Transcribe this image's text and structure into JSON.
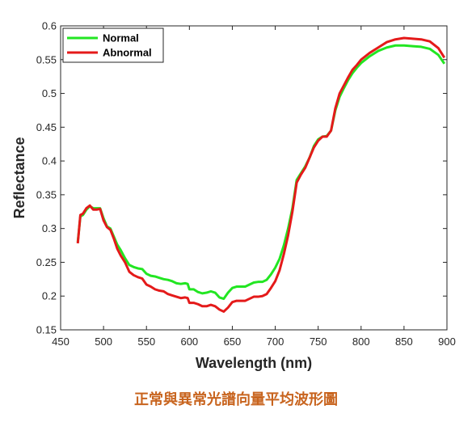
{
  "caption": "正常與異常光譜向量平均波形圖",
  "colors": {
    "caption": "#c8641e",
    "axis": "#262626"
  },
  "chart_data": {
    "type": "line",
    "title": "",
    "xlabel": "Wavelength (nm)",
    "ylabel": "Reflectance",
    "xlim": [
      450,
      900
    ],
    "ylim": [
      0.15,
      0.6
    ],
    "xticks": [
      450,
      500,
      550,
      600,
      650,
      700,
      750,
      800,
      850,
      900
    ],
    "yticks": [
      0.15,
      0.2,
      0.25,
      0.3,
      0.35,
      0.4,
      0.45,
      0.5,
      0.55,
      0.6
    ],
    "xtick_labels": [
      "450",
      "500",
      "550",
      "600",
      "650",
      "700",
      "750",
      "800",
      "850",
      "900"
    ],
    "ytick_labels": [
      "0.15",
      "0.2",
      "0.25",
      "0.3",
      "0.35",
      "0.4",
      "0.45",
      "0.5",
      "0.55",
      "0.6"
    ],
    "grid": false,
    "legend": "top-left",
    "series": [
      {
        "name": "Normal",
        "color": "#22e622",
        "x": [
          470,
          473,
          476,
          480,
          484,
          488,
          492,
          496,
          500,
          504,
          508,
          512,
          516,
          520,
          525,
          530,
          535,
          540,
          545,
          550,
          555,
          560,
          565,
          570,
          575,
          580,
          585,
          590,
          595,
          598,
          600,
          605,
          610,
          615,
          620,
          625,
          630,
          635,
          640,
          645,
          650,
          655,
          660,
          665,
          670,
          675,
          680,
          685,
          690,
          695,
          700,
          705,
          710,
          715,
          720,
          725,
          730,
          735,
          740,
          745,
          750,
          755,
          760,
          765,
          770,
          775,
          780,
          785,
          790,
          795,
          800,
          810,
          820,
          830,
          840,
          850,
          860,
          870,
          880,
          890,
          897
        ],
        "y": [
          0.28,
          0.318,
          0.32,
          0.328,
          0.333,
          0.33,
          0.33,
          0.33,
          0.315,
          0.303,
          0.3,
          0.288,
          0.276,
          0.268,
          0.256,
          0.246,
          0.243,
          0.241,
          0.24,
          0.233,
          0.23,
          0.229,
          0.227,
          0.225,
          0.224,
          0.222,
          0.219,
          0.218,
          0.219,
          0.218,
          0.21,
          0.21,
          0.206,
          0.204,
          0.205,
          0.207,
          0.205,
          0.198,
          0.196,
          0.205,
          0.212,
          0.214,
          0.214,
          0.214,
          0.217,
          0.22,
          0.221,
          0.221,
          0.224,
          0.232,
          0.242,
          0.255,
          0.275,
          0.3,
          0.33,
          0.372,
          0.382,
          0.392,
          0.405,
          0.422,
          0.432,
          0.436,
          0.437,
          0.445,
          0.475,
          0.495,
          0.508,
          0.52,
          0.53,
          0.538,
          0.545,
          0.555,
          0.563,
          0.568,
          0.571,
          0.571,
          0.57,
          0.569,
          0.566,
          0.557,
          0.544
        ]
      },
      {
        "name": "Abnormal",
        "color": "#e41a1a",
        "x": [
          470,
          473,
          476,
          480,
          484,
          488,
          492,
          496,
          500,
          504,
          508,
          512,
          516,
          520,
          525,
          530,
          535,
          540,
          545,
          550,
          555,
          560,
          565,
          570,
          575,
          580,
          585,
          590,
          595,
          598,
          600,
          605,
          610,
          615,
          620,
          625,
          630,
          635,
          640,
          645,
          650,
          655,
          660,
          665,
          670,
          675,
          680,
          685,
          690,
          695,
          700,
          705,
          710,
          715,
          720,
          725,
          730,
          735,
          740,
          745,
          750,
          755,
          760,
          765,
          770,
          775,
          780,
          785,
          790,
          795,
          800,
          810,
          820,
          830,
          840,
          850,
          860,
          870,
          880,
          890,
          897
        ],
        "y": [
          0.278,
          0.32,
          0.322,
          0.33,
          0.334,
          0.328,
          0.328,
          0.329,
          0.312,
          0.302,
          0.298,
          0.285,
          0.27,
          0.26,
          0.25,
          0.236,
          0.231,
          0.228,
          0.226,
          0.217,
          0.214,
          0.21,
          0.208,
          0.207,
          0.203,
          0.201,
          0.199,
          0.197,
          0.198,
          0.197,
          0.19,
          0.19,
          0.188,
          0.185,
          0.185,
          0.187,
          0.185,
          0.18,
          0.177,
          0.183,
          0.191,
          0.193,
          0.193,
          0.193,
          0.196,
          0.199,
          0.199,
          0.2,
          0.203,
          0.212,
          0.222,
          0.238,
          0.262,
          0.29,
          0.325,
          0.368,
          0.38,
          0.39,
          0.405,
          0.42,
          0.43,
          0.436,
          0.436,
          0.445,
          0.478,
          0.5,
          0.512,
          0.524,
          0.535,
          0.542,
          0.55,
          0.56,
          0.568,
          0.576,
          0.58,
          0.582,
          0.581,
          0.58,
          0.577,
          0.567,
          0.553
        ]
      }
    ]
  }
}
